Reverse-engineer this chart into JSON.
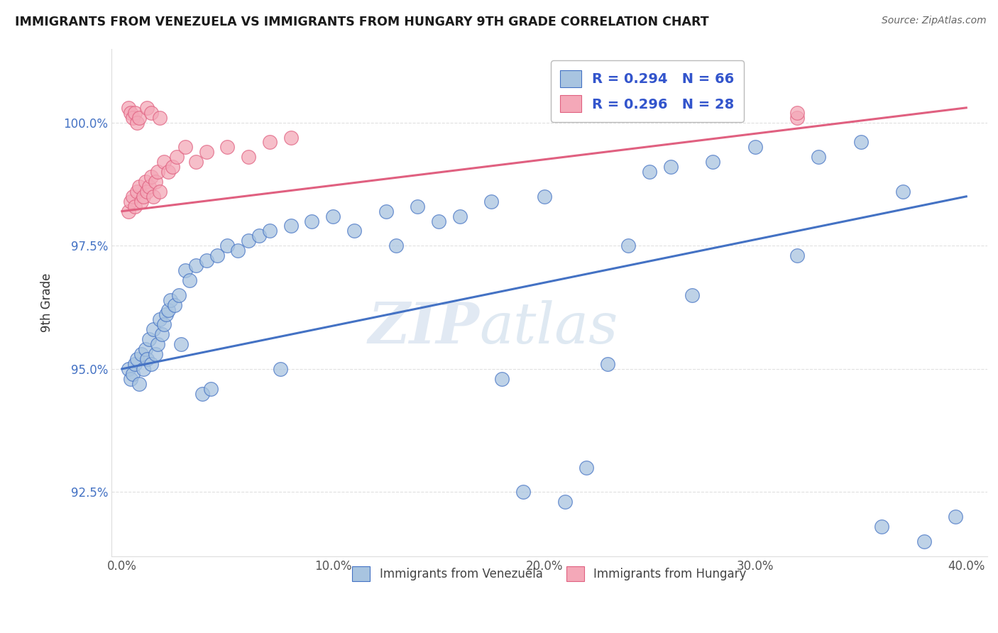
{
  "title": "IMMIGRANTS FROM VENEZUELA VS IMMIGRANTS FROM HUNGARY 9TH GRADE CORRELATION CHART",
  "source": "Source: ZipAtlas.com",
  "xlabel_ticks": [
    "0.0%",
    "10.0%",
    "20.0%",
    "30.0%",
    "40.0%"
  ],
  "xlabel_tick_vals": [
    0.0,
    10.0,
    20.0,
    30.0,
    40.0
  ],
  "ylabel_ticks": [
    "92.5%",
    "95.0%",
    "97.5%",
    "100.0%"
  ],
  "ylabel_tick_vals": [
    92.5,
    95.0,
    97.5,
    100.0
  ],
  "ylabel": "9th Grade",
  "xlim": [
    -0.5,
    41.0
  ],
  "ylim": [
    91.2,
    101.5
  ],
  "R_venezuela": 0.294,
  "N_venezuela": 66,
  "R_hungary": 0.296,
  "N_hungary": 28,
  "color_venezuela": "#a8c4e0",
  "color_hungary": "#f4a8b8",
  "line_color_venezuela": "#4472c4",
  "line_color_hungary": "#e06080",
  "legend_text_color": "#3355cc",
  "venezuela_x": [
    0.3,
    0.4,
    0.5,
    0.6,
    0.7,
    0.8,
    0.9,
    1.0,
    1.1,
    1.2,
    1.3,
    1.4,
    1.5,
    1.6,
    1.7,
    1.8,
    1.9,
    2.0,
    2.1,
    2.2,
    2.3,
    2.5,
    2.7,
    3.0,
    3.2,
    3.5,
    4.0,
    4.5,
    5.0,
    5.5,
    6.0,
    6.5,
    7.0,
    8.0,
    9.0,
    10.0,
    11.0,
    12.5,
    14.0,
    15.0,
    16.0,
    17.5,
    19.0,
    20.0,
    21.0,
    22.0,
    24.0,
    25.0,
    26.0,
    28.0,
    30.0,
    33.0,
    35.0,
    36.0,
    38.0,
    39.5,
    2.8,
    3.8,
    4.2,
    7.5,
    13.0,
    18.0,
    23.0,
    27.0,
    32.0,
    37.0
  ],
  "venezuela_y": [
    95.0,
    94.8,
    94.9,
    95.1,
    95.2,
    94.7,
    95.3,
    95.0,
    95.4,
    95.2,
    95.6,
    95.1,
    95.8,
    95.3,
    95.5,
    96.0,
    95.7,
    95.9,
    96.1,
    96.2,
    96.4,
    96.3,
    96.5,
    97.0,
    96.8,
    97.1,
    97.2,
    97.3,
    97.5,
    97.4,
    97.6,
    97.7,
    97.8,
    97.9,
    98.0,
    98.1,
    97.8,
    98.2,
    98.3,
    98.0,
    98.1,
    98.4,
    92.5,
    98.5,
    92.3,
    93.0,
    97.5,
    99.0,
    99.1,
    99.2,
    99.5,
    99.3,
    99.6,
    91.8,
    91.5,
    92.0,
    95.5,
    94.5,
    94.6,
    95.0,
    97.5,
    94.8,
    95.1,
    96.5,
    97.3,
    98.6
  ],
  "hungary_x": [
    0.3,
    0.4,
    0.5,
    0.6,
    0.7,
    0.8,
    0.9,
    1.0,
    1.1,
    1.2,
    1.3,
    1.4,
    1.5,
    1.6,
    1.7,
    1.8,
    2.0,
    2.2,
    2.4,
    2.6,
    3.0,
    3.5,
    4.0,
    5.0,
    6.0,
    7.0,
    8.0,
    32.0
  ],
  "hungary_y": [
    98.2,
    98.4,
    98.5,
    98.3,
    98.6,
    98.7,
    98.4,
    98.5,
    98.8,
    98.6,
    98.7,
    98.9,
    98.5,
    98.8,
    99.0,
    98.6,
    99.2,
    99.0,
    99.1,
    99.3,
    99.5,
    99.2,
    99.4,
    99.5,
    99.3,
    99.6,
    99.7,
    100.1
  ],
  "hungary_top_x": [
    0.3,
    0.4,
    0.5,
    0.6,
    0.7,
    0.8,
    1.2,
    1.4,
    1.8,
    32.0
  ],
  "hungary_top_y": [
    100.3,
    100.2,
    100.1,
    100.2,
    100.0,
    100.1,
    100.3,
    100.2,
    100.1,
    100.2
  ],
  "watermark_zip": "ZIP",
  "watermark_atlas": "atlas",
  "background_color": "#ffffff",
  "grid_color": "#dddddd"
}
